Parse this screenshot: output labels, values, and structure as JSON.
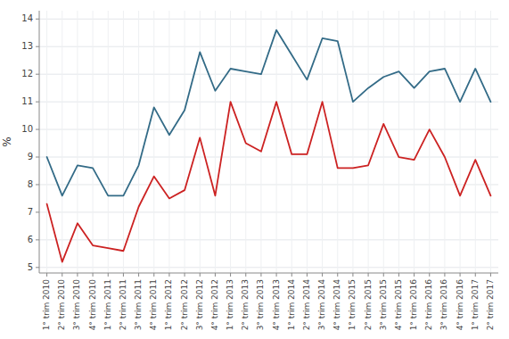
{
  "chart_data": {
    "type": "line",
    "ylabel": "%",
    "categories": [
      "1° trim 2010",
      "2° trim 2010",
      "3° trim 2010",
      "4° trim 2010",
      "1° trim 2011",
      "2° trim 2011",
      "3° trim 2011",
      "4° trim 2011",
      "1° trim 2012",
      "2° trim 2012",
      "3° trim 2012",
      "4° trim 2012",
      "1° trim 2013",
      "2° trim 2013",
      "3° trim 2013",
      "4° trim 2013",
      "1° trim 2014",
      "2° trim 2014",
      "3° trim 2014",
      "4° trim 2014",
      "1° trim 2015",
      "2° trim 2015",
      "3° trim 2015",
      "4° trim 2015",
      "1° trim 2016",
      "2° trim 2016",
      "3° trim 2016",
      "4° trim 2016",
      "1° trim 2017",
      "2° trim 2017"
    ],
    "series": [
      {
        "color": "#336b87",
        "values": [
          9.0,
          7.6,
          8.7,
          8.6,
          7.6,
          7.6,
          8.7,
          10.8,
          9.8,
          10.7,
          12.8,
          11.4,
          12.2,
          12.1,
          12.0,
          13.6,
          12.7,
          11.8,
          13.3,
          13.2,
          11.0,
          11.5,
          11.9,
          12.1,
          11.5,
          12.1,
          12.2,
          11.0,
          12.2,
          11.0
        ]
      },
      {
        "color": "#cc2222",
        "values": [
          7.3,
          5.2,
          6.6,
          5.8,
          5.7,
          5.6,
          7.2,
          8.3,
          7.5,
          7.8,
          9.7,
          7.6,
          11.0,
          9.5,
          9.2,
          11.0,
          9.1,
          9.1,
          11.0,
          8.6,
          8.6,
          8.7,
          10.2,
          9.0,
          8.9,
          10.0,
          9.0,
          7.6,
          8.9,
          7.6
        ]
      }
    ],
    "ylim": [
      4.8,
      14.3
    ],
    "yticks": [
      5,
      6,
      7,
      8,
      9,
      10,
      11,
      12,
      13,
      14
    ],
    "grid": true
  }
}
